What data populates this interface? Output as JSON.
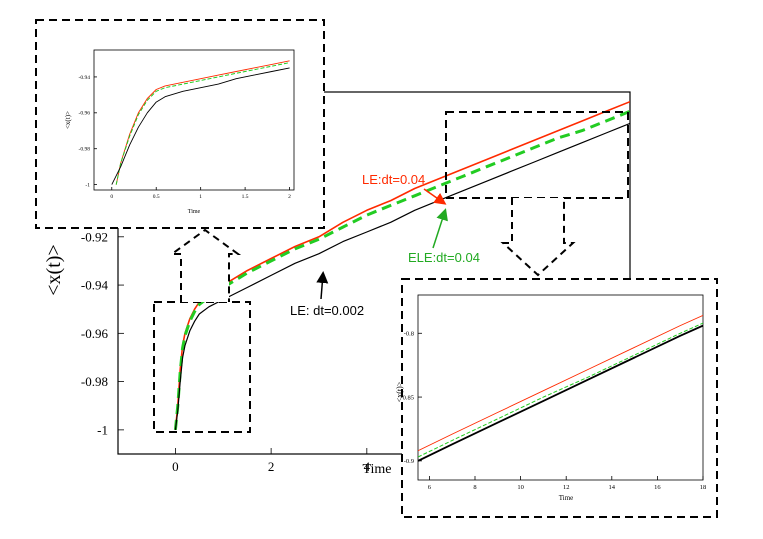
{
  "chart_data": [
    {
      "id": "main",
      "type": "line",
      "xlabel": "Time",
      "ylabel": "<x(t)>",
      "xlim": [
        -1.2,
        9.5
      ],
      "ylim": [
        -1.01,
        -0.86
      ],
      "x_ticks": [
        0,
        2,
        4
      ],
      "y_ticks": [
        -1,
        -0.98,
        -0.96,
        -0.94,
        -0.92
      ],
      "x_tick_labels": [
        "0",
        "2",
        "4"
      ],
      "y_tick_labels": [
        "-1",
        "-0.98",
        "-0.96",
        "-0.94",
        "-0.92"
      ],
      "series": [
        {
          "name": "LE:dt=0.04",
          "color": "#ff2a00",
          "style": "solid",
          "x": [
            0.0,
            0.05,
            0.1,
            0.15,
            0.2,
            0.3,
            0.4,
            0.5,
            0.7,
            1.0,
            1.5,
            2.0,
            2.5,
            3.0,
            3.5,
            4.0,
            4.5,
            5.0,
            5.5,
            6.0,
            6.5,
            7.0,
            7.5,
            8.0,
            8.5,
            9.0,
            9.5
          ],
          "y": [
            -1.0,
            -0.99,
            -0.975,
            -0.965,
            -0.96,
            -0.954,
            -0.95,
            -0.947,
            -0.944,
            -0.94,
            -0.934,
            -0.929,
            -0.924,
            -0.92,
            -0.914,
            -0.909,
            -0.905,
            -0.9,
            -0.896,
            -0.892,
            -0.888,
            -0.884,
            -0.88,
            -0.876,
            -0.872,
            -0.868,
            -0.864
          ]
        },
        {
          "name": "ELE:dt=0.04",
          "color": "#22cc22",
          "style": "dashed",
          "x": [
            0.0,
            0.05,
            0.1,
            0.15,
            0.2,
            0.3,
            0.4,
            0.5,
            0.7,
            1.0,
            1.5,
            2.0,
            2.5,
            3.0,
            3.5,
            4.0,
            4.5,
            5.0,
            5.5,
            6.0,
            6.5,
            7.0,
            7.5,
            8.0,
            8.5,
            9.0,
            9.5
          ],
          "y": [
            -1.0,
            -0.99,
            -0.976,
            -0.966,
            -0.961,
            -0.955,
            -0.951,
            -0.948,
            -0.945,
            -0.941,
            -0.935,
            -0.93,
            -0.925,
            -0.921,
            -0.916,
            -0.911,
            -0.907,
            -0.903,
            -0.899,
            -0.895,
            -0.891,
            -0.887,
            -0.883,
            -0.879,
            -0.876,
            -0.872,
            -0.868
          ]
        },
        {
          "name": "LE: dt=0.002",
          "color": "#000000",
          "style": "solid",
          "x": [
            0.0,
            0.05,
            0.1,
            0.15,
            0.2,
            0.3,
            0.4,
            0.5,
            0.7,
            1.0,
            1.5,
            2.0,
            2.5,
            3.0,
            3.5,
            4.0,
            4.5,
            5.0,
            5.5,
            6.0,
            6.5,
            7.0,
            7.5,
            8.0,
            8.5,
            9.0,
            9.5
          ],
          "y": [
            -1.0,
            -0.992,
            -0.98,
            -0.97,
            -0.965,
            -0.959,
            -0.955,
            -0.952,
            -0.949,
            -0.946,
            -0.941,
            -0.936,
            -0.931,
            -0.927,
            -0.922,
            -0.918,
            -0.914,
            -0.909,
            -0.905,
            -0.901,
            -0.897,
            -0.893,
            -0.889,
            -0.885,
            -0.881,
            -0.877,
            -0.873
          ]
        }
      ],
      "annotations": [
        {
          "text": "LE:dt=0.04",
          "color": "#ff2a00"
        },
        {
          "text": "ELE:dt=0.04",
          "color": "#22aa22"
        },
        {
          "text": "LE: dt=0.002",
          "color": "#000000"
        }
      ]
    },
    {
      "id": "inset-left",
      "type": "line",
      "xlabel": "Time",
      "ylabel": "<x(t)>",
      "xlim": [
        -0.2,
        2.05
      ],
      "ylim": [
        -1.003,
        -0.925
      ],
      "x_ticks": [
        0,
        0.5,
        1,
        1.5,
        2
      ],
      "y_ticks": [
        -1,
        -0.98,
        -0.96,
        -0.94
      ],
      "x_tick_labels": [
        "0",
        "0.5",
        "1",
        "1.5",
        "2"
      ],
      "y_tick_labels": [
        "-1",
        "-0.98",
        "-0.96",
        "-0.94"
      ],
      "series": [
        {
          "name": "LE:dt=0.04",
          "color": "#ff2a00",
          "style": "solid",
          "x": [
            0.05,
            0.1,
            0.2,
            0.3,
            0.4,
            0.5,
            0.6,
            0.8,
            1.0,
            1.2,
            1.4,
            1.6,
            1.8,
            2.0
          ],
          "y": [
            -1.0,
            -0.988,
            -0.972,
            -0.96,
            -0.952,
            -0.947,
            -0.945,
            -0.943,
            -0.941,
            -0.939,
            -0.937,
            -0.935,
            -0.933,
            -0.931
          ]
        },
        {
          "name": "ELE:dt=0.04",
          "color": "#22cc22",
          "style": "dashed",
          "x": [
            0.05,
            0.1,
            0.2,
            0.3,
            0.4,
            0.5,
            0.6,
            0.8,
            1.0,
            1.2,
            1.4,
            1.6,
            1.8,
            2.0
          ],
          "y": [
            -1.0,
            -0.988,
            -0.973,
            -0.961,
            -0.953,
            -0.948,
            -0.946,
            -0.944,
            -0.942,
            -0.94,
            -0.938,
            -0.936,
            -0.934,
            -0.932
          ]
        },
        {
          "name": "LE: dt=0.002",
          "color": "#000000",
          "style": "solid",
          "x": [
            0.0,
            0.1,
            0.2,
            0.3,
            0.4,
            0.5,
            0.6,
            0.8,
            1.0,
            1.2,
            1.4,
            1.6,
            1.8,
            2.0
          ],
          "y": [
            -1.0,
            -0.99,
            -0.978,
            -0.968,
            -0.96,
            -0.954,
            -0.951,
            -0.948,
            -0.946,
            -0.944,
            -0.941,
            -0.939,
            -0.937,
            -0.935
          ]
        }
      ]
    },
    {
      "id": "inset-right",
      "type": "line",
      "xlabel": "Time",
      "ylabel": "<x(t)>",
      "xlim": [
        5.5,
        18
      ],
      "ylim": [
        -0.915,
        -0.77
      ],
      "x_ticks": [
        6,
        8,
        10,
        12,
        14,
        16,
        18
      ],
      "y_ticks": [
        -0.9,
        -0.85,
        -0.8
      ],
      "x_tick_labels": [
        "6",
        "8",
        "10",
        "12",
        "14",
        "16",
        "18"
      ],
      "y_tick_labels": [
        "-0.9",
        "-0.85",
        "-0.8"
      ],
      "series": [
        {
          "name": "LE:dt=0.04",
          "color": "#ff2a00",
          "style": "solid",
          "x": [
            5.5,
            7,
            9,
            11,
            13,
            15,
            17,
            18
          ],
          "y": [
            -0.892,
            -0.879,
            -0.862,
            -0.845,
            -0.828,
            -0.811,
            -0.794,
            -0.786
          ]
        },
        {
          "name": "ELE:dt=0.04",
          "color": "#22cc22",
          "style": "dashed",
          "x": [
            5.5,
            7,
            9,
            11,
            13,
            15,
            17,
            18
          ],
          "y": [
            -0.897,
            -0.884,
            -0.867,
            -0.85,
            -0.834,
            -0.817,
            -0.8,
            -0.792
          ]
        },
        {
          "name": "LE: dt=0.002",
          "color": "#000000",
          "style": "solid",
          "x": [
            5.5,
            7,
            9,
            11,
            13,
            15,
            17,
            18
          ],
          "y": [
            -0.9,
            -0.887,
            -0.87,
            -0.853,
            -0.836,
            -0.819,
            -0.802,
            -0.794
          ]
        }
      ]
    }
  ]
}
